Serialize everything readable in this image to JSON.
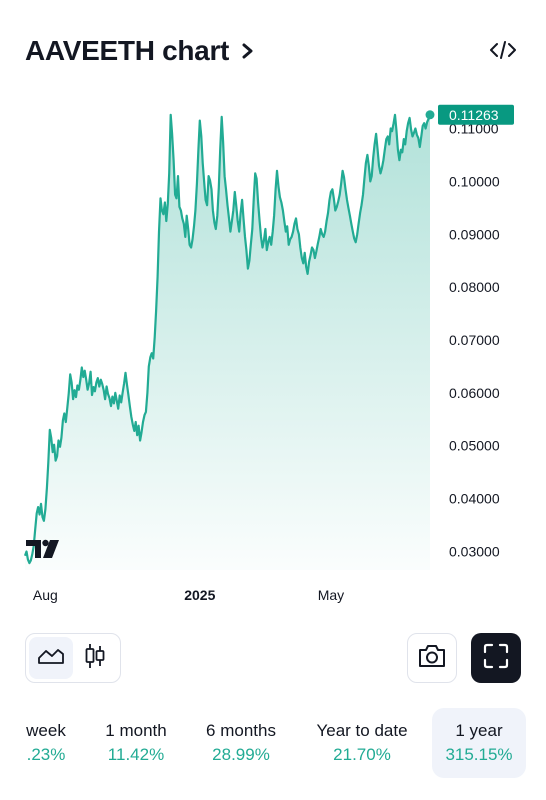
{
  "header": {
    "title": "AAVEETH chart",
    "chevron_icon": "chevron-right-icon",
    "embed_icon": "code-icon"
  },
  "colors": {
    "line": "#22ab94",
    "area_top": "#bfe6dc",
    "price_label_bg": "#089981",
    "text": "#131722",
    "positive": "#22ab94"
  },
  "chart_data": {
    "type": "area",
    "ylim": [
      0.0265,
      0.1135
    ],
    "y_ticks": [
      "0.03000",
      "0.04000",
      "0.05000",
      "0.06000",
      "0.07000",
      "0.08000",
      "0.09000",
      "0.10000",
      "0.11000"
    ],
    "x_ticks": [
      "Aug",
      "2025",
      "May"
    ],
    "x_tick_index": [
      14,
      120,
      210
    ],
    "last_price_label": "0.11263",
    "grid": false,
    "logo": "TradingView",
    "values": [
      0.0292,
      0.03,
      0.0285,
      0.0278,
      0.0283,
      0.0295,
      0.031,
      0.0342,
      0.0372,
      0.0384,
      0.037,
      0.039,
      0.0365,
      0.0358,
      0.038,
      0.042,
      0.0468,
      0.053,
      0.0515,
      0.0488,
      0.0502,
      0.0472,
      0.048,
      0.051,
      0.0498,
      0.0515,
      0.0548,
      0.0561,
      0.0545,
      0.057,
      0.0598,
      0.0635,
      0.062,
      0.0588,
      0.0605,
      0.0592,
      0.0614,
      0.0606,
      0.0625,
      0.0648,
      0.063,
      0.0642,
      0.0625,
      0.0606,
      0.0618,
      0.064,
      0.0596,
      0.0611,
      0.0603,
      0.062,
      0.0628,
      0.0612,
      0.0625,
      0.0617,
      0.0605,
      0.0588,
      0.0612,
      0.0598,
      0.059,
      0.0575,
      0.0593,
      0.058,
      0.06,
      0.0585,
      0.057,
      0.0595,
      0.0582,
      0.06,
      0.0618,
      0.0638,
      0.0615,
      0.0596,
      0.0574,
      0.0555,
      0.054,
      0.0528,
      0.0545,
      0.052,
      0.0538,
      0.051,
      0.0525,
      0.0545,
      0.0558,
      0.0564,
      0.06,
      0.065,
      0.0667,
      0.0675,
      0.0665,
      0.0705,
      0.0755,
      0.082,
      0.0905,
      0.0968,
      0.0945,
      0.0938,
      0.096,
      0.0925,
      0.0958,
      0.1015,
      0.1126,
      0.109,
      0.104,
      0.0975,
      0.0968,
      0.101,
      0.0952,
      0.0945,
      0.093,
      0.092,
      0.0895,
      0.0935,
      0.091,
      0.088,
      0.0875,
      0.089,
      0.0915,
      0.0945,
      0.0995,
      0.106,
      0.1115,
      0.1085,
      0.1035,
      0.0998,
      0.0965,
      0.0955,
      0.101,
      0.1002,
      0.0985,
      0.0945,
      0.0922,
      0.091,
      0.0935,
      0.0988,
      0.106,
      0.1122,
      0.1075,
      0.101,
      0.0985,
      0.0955,
      0.093,
      0.0905,
      0.0925,
      0.0945,
      0.098,
      0.0955,
      0.0925,
      0.0905,
      0.094,
      0.0965,
      0.093,
      0.0895,
      0.087,
      0.0835,
      0.085,
      0.088,
      0.091,
      0.0965,
      0.1015,
      0.1005,
      0.096,
      0.0925,
      0.0895,
      0.0875,
      0.0888,
      0.091,
      0.087,
      0.0885,
      0.0895,
      0.088,
      0.0905,
      0.0935,
      0.0985,
      0.102,
      0.099,
      0.097,
      0.096,
      0.0945,
      0.0925,
      0.0905,
      0.0915,
      0.088,
      0.089,
      0.0895,
      0.0905,
      0.092,
      0.093,
      0.091,
      0.09,
      0.0875,
      0.0855,
      0.0845,
      0.0865,
      0.0838,
      0.0825,
      0.0848,
      0.086,
      0.0875,
      0.087,
      0.0855,
      0.0868,
      0.0882,
      0.0895,
      0.091,
      0.09,
      0.0895,
      0.0905,
      0.0925,
      0.094,
      0.0965,
      0.098,
      0.0985,
      0.0968,
      0.0945,
      0.0952,
      0.0962,
      0.0975,
      0.0995,
      0.102,
      0.1008,
      0.0985,
      0.0965,
      0.095,
      0.0935,
      0.092,
      0.0905,
      0.0892,
      0.0885,
      0.09,
      0.092,
      0.094,
      0.0955,
      0.0975,
      0.1005,
      0.1035,
      0.105,
      0.103,
      0.1,
      0.101,
      0.1045,
      0.107,
      0.109,
      0.106,
      0.103,
      0.1015,
      0.1025,
      0.104,
      0.106,
      0.108,
      0.1085,
      0.107,
      0.11,
      0.1095,
      0.111,
      0.1126,
      0.1095,
      0.106,
      0.104,
      0.106,
      0.1055,
      0.108,
      0.107,
      0.1095,
      0.111,
      0.112,
      0.1098,
      0.1085,
      0.1092,
      0.11,
      0.1088,
      0.1082,
      0.1065,
      0.1085,
      0.1105,
      0.111,
      0.11,
      0.1112,
      0.1118,
      0.1126
    ]
  },
  "toolbar": {
    "area_chart_icon": "area-chart-icon",
    "candles_icon": "candlestick-icon",
    "camera_icon": "camera-icon",
    "fullscreen_icon": "fullscreen-icon"
  },
  "periods": [
    {
      "label": "week",
      "value": ".23%",
      "active": false
    },
    {
      "label": "1 month",
      "value": "11.42%",
      "active": false
    },
    {
      "label": "6 months",
      "value": "28.99%",
      "active": false
    },
    {
      "label": "Year to date",
      "value": "21.70%",
      "active": false
    },
    {
      "label": "1 year",
      "value": "315.15%",
      "active": true
    }
  ]
}
